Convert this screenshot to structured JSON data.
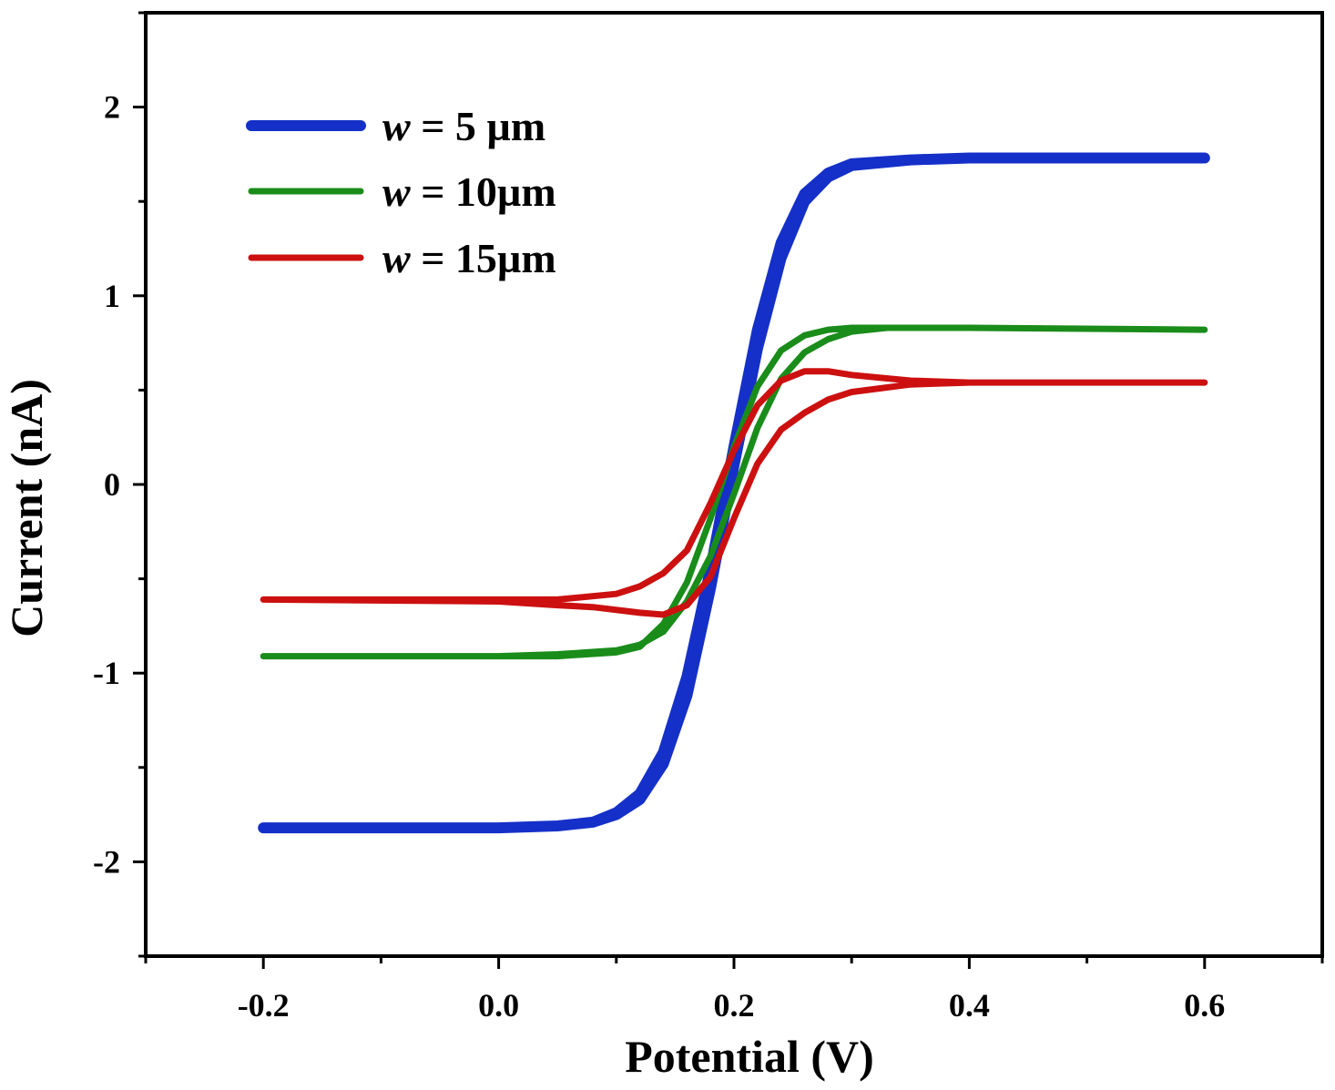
{
  "chart_data": {
    "type": "line",
    "title": "",
    "xlabel": "Potential (V)",
    "ylabel": "Current (nA)",
    "xlim": [
      -0.3,
      0.7
    ],
    "ylim": [
      -2.5,
      2.5
    ],
    "xticks": [
      -0.2,
      0.0,
      0.2,
      0.4,
      0.6
    ],
    "xtick_labels": [
      "-0.2",
      "0.0",
      "0.2",
      "0.4",
      "0.6"
    ],
    "yticks": [
      -2,
      -1,
      0,
      1,
      2
    ],
    "ytick_labels": [
      "-2",
      "-1",
      "0",
      "1",
      "2"
    ],
    "grid": false,
    "legend_position": "top-left",
    "series": [
      {
        "name": "w = 5 µm",
        "legend_var": "w",
        "legend_rest": " = 5  µm",
        "color": "#1530c8",
        "forward": [
          [
            -0.2,
            -1.82
          ],
          [
            0.0,
            -1.82
          ],
          [
            0.05,
            -1.81
          ],
          [
            0.08,
            -1.79
          ],
          [
            0.1,
            -1.75
          ],
          [
            0.12,
            -1.67
          ],
          [
            0.14,
            -1.48
          ],
          [
            0.16,
            -1.12
          ],
          [
            0.18,
            -0.55
          ],
          [
            0.2,
            0.1
          ],
          [
            0.22,
            0.72
          ],
          [
            0.24,
            1.2
          ],
          [
            0.26,
            1.5
          ],
          [
            0.28,
            1.63
          ],
          [
            0.3,
            1.69
          ],
          [
            0.35,
            1.72
          ],
          [
            0.4,
            1.73
          ],
          [
            0.6,
            1.73
          ]
        ],
        "reverse": [
          [
            0.6,
            1.73
          ],
          [
            0.4,
            1.73
          ],
          [
            0.35,
            1.72
          ],
          [
            0.3,
            1.7
          ],
          [
            0.28,
            1.65
          ],
          [
            0.26,
            1.54
          ],
          [
            0.24,
            1.28
          ],
          [
            0.22,
            0.82
          ],
          [
            0.2,
            0.2
          ],
          [
            0.18,
            -0.45
          ],
          [
            0.16,
            -1.02
          ],
          [
            0.14,
            -1.42
          ],
          [
            0.12,
            -1.64
          ],
          [
            0.1,
            -1.74
          ],
          [
            0.08,
            -1.79
          ],
          [
            0.05,
            -1.81
          ],
          [
            0.0,
            -1.82
          ],
          [
            -0.2,
            -1.82
          ]
        ]
      },
      {
        "name": "w = 10µm",
        "legend_var": "w",
        "legend_rest": " = 10µm",
        "color": "#1a8c1a",
        "forward": [
          [
            -0.2,
            -0.91
          ],
          [
            0.0,
            -0.91
          ],
          [
            0.05,
            -0.9
          ],
          [
            0.1,
            -0.88
          ],
          [
            0.12,
            -0.85
          ],
          [
            0.14,
            -0.78
          ],
          [
            0.16,
            -0.62
          ],
          [
            0.18,
            -0.38
          ],
          [
            0.2,
            -0.05
          ],
          [
            0.22,
            0.3
          ],
          [
            0.24,
            0.56
          ],
          [
            0.26,
            0.7
          ],
          [
            0.28,
            0.77
          ],
          [
            0.3,
            0.81
          ],
          [
            0.33,
            0.83
          ],
          [
            0.4,
            0.83
          ],
          [
            0.6,
            0.82
          ]
        ],
        "reverse": [
          [
            0.6,
            0.82
          ],
          [
            0.4,
            0.83
          ],
          [
            0.33,
            0.83
          ],
          [
            0.3,
            0.83
          ],
          [
            0.28,
            0.82
          ],
          [
            0.26,
            0.79
          ],
          [
            0.24,
            0.71
          ],
          [
            0.22,
            0.52
          ],
          [
            0.2,
            0.2
          ],
          [
            0.18,
            -0.18
          ],
          [
            0.16,
            -0.52
          ],
          [
            0.14,
            -0.74
          ],
          [
            0.12,
            -0.86
          ],
          [
            0.1,
            -0.89
          ],
          [
            0.05,
            -0.91
          ],
          [
            0.0,
            -0.91
          ],
          [
            -0.2,
            -0.91
          ]
        ]
      },
      {
        "name": "w = 15µm",
        "legend_var": "w",
        "legend_rest": " = 15µm",
        "color": "#cc1010",
        "forward": [
          [
            -0.2,
            -0.61
          ],
          [
            0.0,
            -0.62
          ],
          [
            0.05,
            -0.64
          ],
          [
            0.08,
            -0.65
          ],
          [
            0.12,
            -0.68
          ],
          [
            0.14,
            -0.69
          ],
          [
            0.16,
            -0.64
          ],
          [
            0.18,
            -0.49
          ],
          [
            0.2,
            -0.18
          ],
          [
            0.22,
            0.11
          ],
          [
            0.24,
            0.29
          ],
          [
            0.26,
            0.38
          ],
          [
            0.28,
            0.45
          ],
          [
            0.3,
            0.49
          ],
          [
            0.35,
            0.53
          ],
          [
            0.4,
            0.54
          ],
          [
            0.6,
            0.54
          ]
        ],
        "reverse": [
          [
            0.6,
            0.54
          ],
          [
            0.4,
            0.54
          ],
          [
            0.35,
            0.55
          ],
          [
            0.3,
            0.58
          ],
          [
            0.28,
            0.6
          ],
          [
            0.26,
            0.6
          ],
          [
            0.24,
            0.55
          ],
          [
            0.22,
            0.42
          ],
          [
            0.2,
            0.18
          ],
          [
            0.18,
            -0.1
          ],
          [
            0.16,
            -0.35
          ],
          [
            0.14,
            -0.47
          ],
          [
            0.12,
            -0.54
          ],
          [
            0.1,
            -0.58
          ],
          [
            0.05,
            -0.61
          ],
          [
            0.0,
            -0.61
          ],
          [
            -0.2,
            -0.61
          ]
        ]
      }
    ]
  }
}
